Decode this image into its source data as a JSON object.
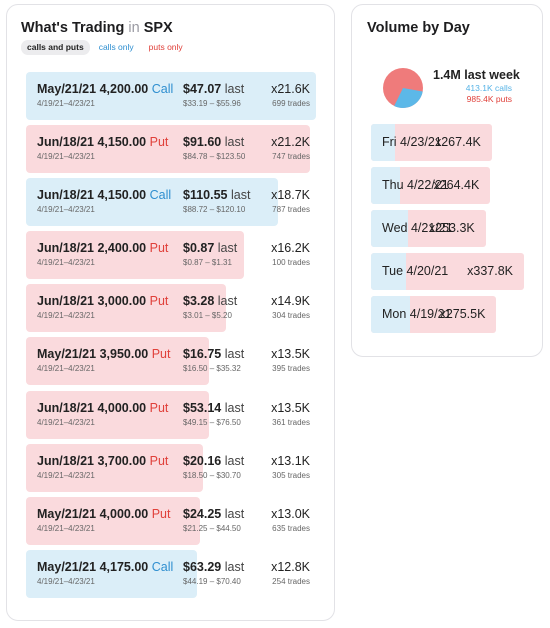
{
  "trading": {
    "title_prefix": "What's Trading",
    "title_in": "in",
    "symbol": "SPX",
    "filters": {
      "all": "calls and puts",
      "calls": "calls only",
      "puts": "puts only",
      "active": "all"
    },
    "last_label": "last",
    "trades_suffix": "trades",
    "trades": [
      {
        "expiry": "May/21/21",
        "strike": "4,200.00",
        "type": "Call",
        "dates": "4/19/21–4/23/21",
        "last": "$47.07",
        "range": "$33.19 – $55.96",
        "qty": "x21.6K",
        "count": "699",
        "share": 1.0
      },
      {
        "expiry": "Jun/18/21",
        "strike": "4,150.00",
        "type": "Put",
        "dates": "4/19/21–4/23/21",
        "last": "$91.60",
        "range": "$84.78 – $123.50",
        "qty": "x21.2K",
        "count": "747",
        "share": 0.98
      },
      {
        "expiry": "Jun/18/21",
        "strike": "4,150.00",
        "type": "Call",
        "dates": "4/19/21–4/23/21",
        "last": "$110.55",
        "range": "$88.72 – $120.10",
        "qty": "x18.7K",
        "count": "787",
        "share": 0.87
      },
      {
        "expiry": "Jun/18/21",
        "strike": "2,400.00",
        "type": "Put",
        "dates": "4/19/21–4/23/21",
        "last": "$0.87",
        "range": "$0.87 – $1.31",
        "qty": "x16.2K",
        "count": "100",
        "share": 0.75
      },
      {
        "expiry": "Jun/18/21",
        "strike": "3,000.00",
        "type": "Put",
        "dates": "4/19/21–4/23/21",
        "last": "$3.28",
        "range": "$3.01 – $5.20",
        "qty": "x14.9K",
        "count": "304",
        "share": 0.69
      },
      {
        "expiry": "May/21/21",
        "strike": "3,950.00",
        "type": "Put",
        "dates": "4/19/21–4/23/21",
        "last": "$16.75",
        "range": "$16.50 – $35.32",
        "qty": "x13.5K",
        "count": "395",
        "share": 0.63
      },
      {
        "expiry": "Jun/18/21",
        "strike": "4,000.00",
        "type": "Put",
        "dates": "4/19/21–4/23/21",
        "last": "$53.14",
        "range": "$49.15 – $76.50",
        "qty": "x13.5K",
        "count": "361",
        "share": 0.63
      },
      {
        "expiry": "Jun/18/21",
        "strike": "3,700.00",
        "type": "Put",
        "dates": "4/19/21–4/23/21",
        "last": "$20.16",
        "range": "$18.50 – $30.70",
        "qty": "x13.1K",
        "count": "305",
        "share": 0.61
      },
      {
        "expiry": "May/21/21",
        "strike": "4,000.00",
        "type": "Put",
        "dates": "4/19/21–4/23/21",
        "last": "$24.25",
        "range": "$21.25 – $44.50",
        "qty": "x13.0K",
        "count": "635",
        "share": 0.6
      },
      {
        "expiry": "May/21/21",
        "strike": "4,175.00",
        "type": "Call",
        "dates": "4/19/21–4/23/21",
        "last": "$63.29",
        "range": "$44.19 – $70.40",
        "qty": "x12.8K",
        "count": "254",
        "share": 0.59
      }
    ]
  },
  "volume": {
    "title": "Volume by Day",
    "total": "1.4M last week",
    "calls": "413.1K calls",
    "puts": "985.4K puts",
    "calls_fraction": 0.295,
    "colors": {
      "call": "#5cb8e8",
      "put": "#ef7b7b",
      "call_bg": "#dbeef8",
      "put_bg": "#fadadd"
    },
    "days": [
      {
        "label": "Fri 4/23/21",
        "qty": "x267.4K",
        "share": 0.79,
        "call_share": 0.2
      },
      {
        "label": "Thu 4/22/21",
        "qty": "x264.4K",
        "share": 0.78,
        "call_share": 0.24
      },
      {
        "label": "Wed 4/21/21",
        "qty": "x253.3K",
        "share": 0.75,
        "call_share": 0.32
      },
      {
        "label": "Tue 4/20/21",
        "qty": "x337.8K",
        "share": 1.0,
        "call_share": 0.23
      },
      {
        "label": "Mon 4/19/21",
        "qty": "x275.5K",
        "share": 0.82,
        "call_share": 0.31
      }
    ]
  }
}
